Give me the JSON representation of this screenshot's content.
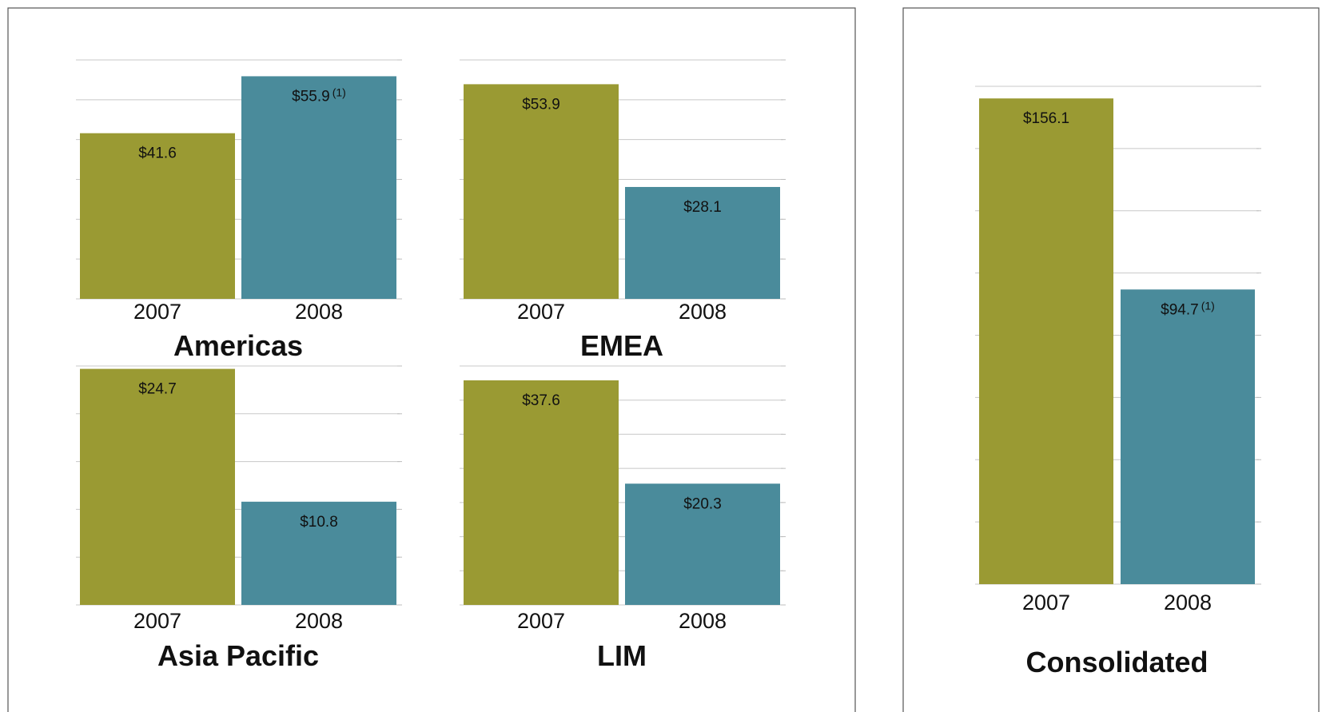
{
  "colors": {
    "2007": "#9a9a33",
    "2008": "#4a8b9b",
    "panel_border": "#555555",
    "grid": "#c8c8c8"
  },
  "chart_data": [
    {
      "type": "bar",
      "title": "Americas",
      "categories": [
        "2007",
        "2008"
      ],
      "values": [
        41.6,
        55.9
      ],
      "value_labels": [
        "$41.6",
        "$55.9"
      ],
      "footnotes": [
        "",
        "(1)"
      ],
      "ylim": [
        0,
        60
      ],
      "grid": true
    },
    {
      "type": "bar",
      "title": "EMEA",
      "categories": [
        "2007",
        "2008"
      ],
      "values": [
        53.9,
        28.1
      ],
      "value_labels": [
        "$53.9",
        "$28.1"
      ],
      "footnotes": [
        "",
        ""
      ],
      "ylim": [
        0,
        60
      ],
      "grid": true
    },
    {
      "type": "bar",
      "title": "Asia Pacific",
      "categories": [
        "2007",
        "2008"
      ],
      "values": [
        24.7,
        10.8
      ],
      "value_labels": [
        "$24.7",
        "$10.8"
      ],
      "footnotes": [
        "",
        ""
      ],
      "ylim": [
        0,
        25
      ],
      "grid": true
    },
    {
      "type": "bar",
      "title": "LIM",
      "categories": [
        "2007",
        "2008"
      ],
      "values": [
        37.6,
        20.3
      ],
      "value_labels": [
        "$37.6",
        "$20.3"
      ],
      "footnotes": [
        "",
        ""
      ],
      "ylim": [
        0,
        40
      ],
      "grid": true
    },
    {
      "type": "bar",
      "title": "Consolidated",
      "categories": [
        "2007",
        "2008"
      ],
      "values": [
        156.1,
        94.7
      ],
      "value_labels": [
        "$156.1",
        "$94.7"
      ],
      "footnotes": [
        "",
        "(1)"
      ],
      "ylim": [
        0,
        160
      ],
      "grid": true
    }
  ]
}
